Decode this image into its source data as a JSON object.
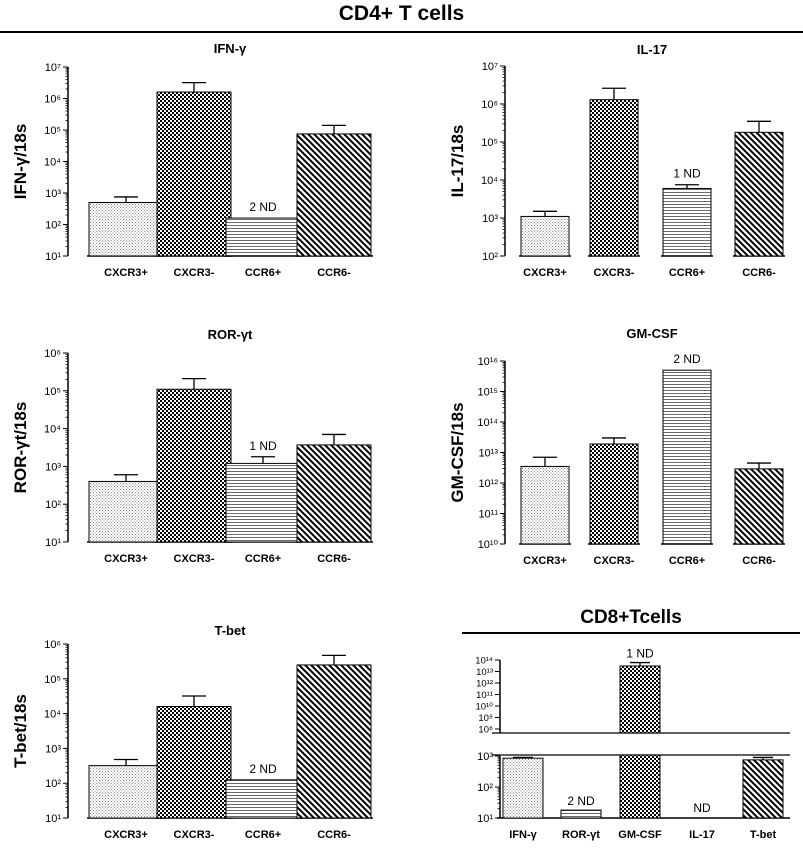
{
  "section_titles": {
    "cd4": "CD4+ T cells",
    "cd8": "CD8+Tcells"
  },
  "chart_data": [
    {
      "type": "bar",
      "scale": "log",
      "title": "IFN-γ",
      "ylabel": "IFN-γ/18s",
      "ylim_exp": [
        1,
        7
      ],
      "categories": [
        "CXCR3+",
        "CXCR3-",
        "CCR6+",
        "CCR6-"
      ],
      "values": [
        500,
        1600000,
        160,
        75000
      ],
      "errors_upper": [
        750,
        3200000,
        null,
        140000
      ],
      "patterns": [
        "dots",
        "checks",
        "hlines",
        "diag"
      ],
      "annotations": [
        null,
        null,
        "2 ND",
        null
      ]
    },
    {
      "type": "bar",
      "scale": "log",
      "title": "IL-17",
      "ylabel": "IL-17/18s",
      "ylim_exp": [
        2,
        7
      ],
      "categories": [
        "CXCR3+",
        "CXCR3-",
        "CCR6+",
        "CCR6-"
      ],
      "values": [
        1100,
        1300000,
        6000,
        180000
      ],
      "errors_upper": [
        1500,
        2600000,
        7500,
        350000
      ],
      "patterns": [
        "dots",
        "checks",
        "hlines",
        "diag"
      ],
      "annotations": [
        null,
        null,
        "1 ND",
        null
      ]
    },
    {
      "type": "bar",
      "scale": "log",
      "title": "ROR-γt",
      "ylabel": "ROR-γt/18s",
      "ylim_exp": [
        1,
        6
      ],
      "categories": [
        "CXCR3+",
        "CXCR3-",
        "CCR6+",
        "CCR6-"
      ],
      "values": [
        400,
        110000,
        1200,
        3700
      ],
      "errors_upper": [
        600,
        210000,
        1800,
        7000
      ],
      "patterns": [
        "dots",
        "checks",
        "hlines",
        "diag"
      ],
      "annotations": [
        null,
        null,
        "1 ND",
        null
      ]
    },
    {
      "type": "bar",
      "scale": "log",
      "title": "GM-CSF",
      "ylabel": "GM-CSF/18s",
      "ylim_exp": [
        10,
        16
      ],
      "categories": [
        "CXCR3+",
        "CXCR3-",
        "CCR6+",
        "CCR6-"
      ],
      "values": [
        3500000000000.0,
        19000000000000.0,
        5000000000000000.0,
        2900000000000.0
      ],
      "errors_upper": [
        7000000000000.0,
        30000000000000.0,
        null,
        4500000000000.0
      ],
      "patterns": [
        "dots",
        "checks",
        "hlines",
        "diag"
      ],
      "annotations": [
        null,
        null,
        "2 ND",
        null
      ]
    },
    {
      "type": "bar",
      "scale": "log",
      "title": "T-bet",
      "ylabel": "T-bet/18s",
      "ylim_exp": [
        1,
        6
      ],
      "categories": [
        "CXCR3+",
        "CXCR3-",
        "CCR6+",
        "CCR6-"
      ],
      "values": [
        320,
        16000,
        125,
        250000
      ],
      "errors_upper": [
        480,
        32000,
        null,
        470000
      ],
      "patterns": [
        "dots",
        "checks",
        "hlines",
        "diag"
      ],
      "annotations": [
        null,
        null,
        "2 ND",
        null
      ]
    },
    {
      "type": "bar",
      "scale": "log-broken",
      "title": "",
      "ylabel": "",
      "ylim_exp_lower": [
        1,
        3
      ],
      "ylim_exp_upper": [
        8,
        14
      ],
      "categories": [
        "IFN-γ",
        "ROR-γt",
        "GM-CSF",
        "IL-17",
        "T-bet"
      ],
      "values": [
        850,
        18,
        30000000000000.0,
        null,
        750
      ],
      "errors_upper": [
        900,
        null,
        60000000000000.0,
        null,
        900
      ],
      "patterns": [
        "dots",
        "hlines",
        "checks",
        "none",
        "diag"
      ],
      "annotations": [
        null,
        "2 ND",
        "1 ND",
        "ND",
        null
      ]
    }
  ]
}
